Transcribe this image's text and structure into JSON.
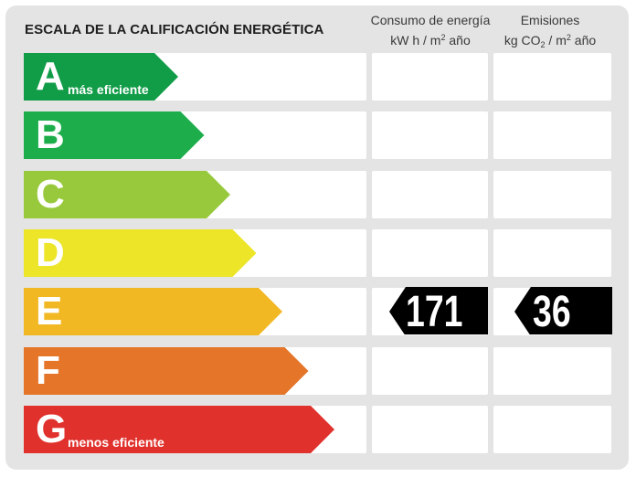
{
  "title": "ESCALA DE LA CALIFICACIÓN ENERGÉTICA",
  "columns": {
    "consumo": {
      "line1": "Consumo de energía",
      "line2_a": "kW h  / m",
      "line2_sup": "2",
      "line2_b": " año"
    },
    "emisiones": {
      "line1": "Emisiones",
      "line2_a": "kg CO",
      "line2_sub": "2",
      "line2_b": "  / m",
      "line2_sup": "2",
      "line2_c": " año"
    }
  },
  "ratings": [
    {
      "letter": "A",
      "label": "más eficiente",
      "color": "#119c48"
    },
    {
      "letter": "B",
      "label": "",
      "color": "#1dae4b"
    },
    {
      "letter": "C",
      "label": "",
      "color": "#98c93c"
    },
    {
      "letter": "D",
      "label": "",
      "color": "#ece528"
    },
    {
      "letter": "E",
      "label": "",
      "color": "#f1b824"
    },
    {
      "letter": "F",
      "label": "",
      "color": "#e47529"
    },
    {
      "letter": "G",
      "label": "menos eficiente",
      "color": "#e0312c"
    }
  ],
  "current_rating": "E",
  "consumo_value": "171",
  "emisiones_value": "36",
  "pointer_color": "#000000"
}
